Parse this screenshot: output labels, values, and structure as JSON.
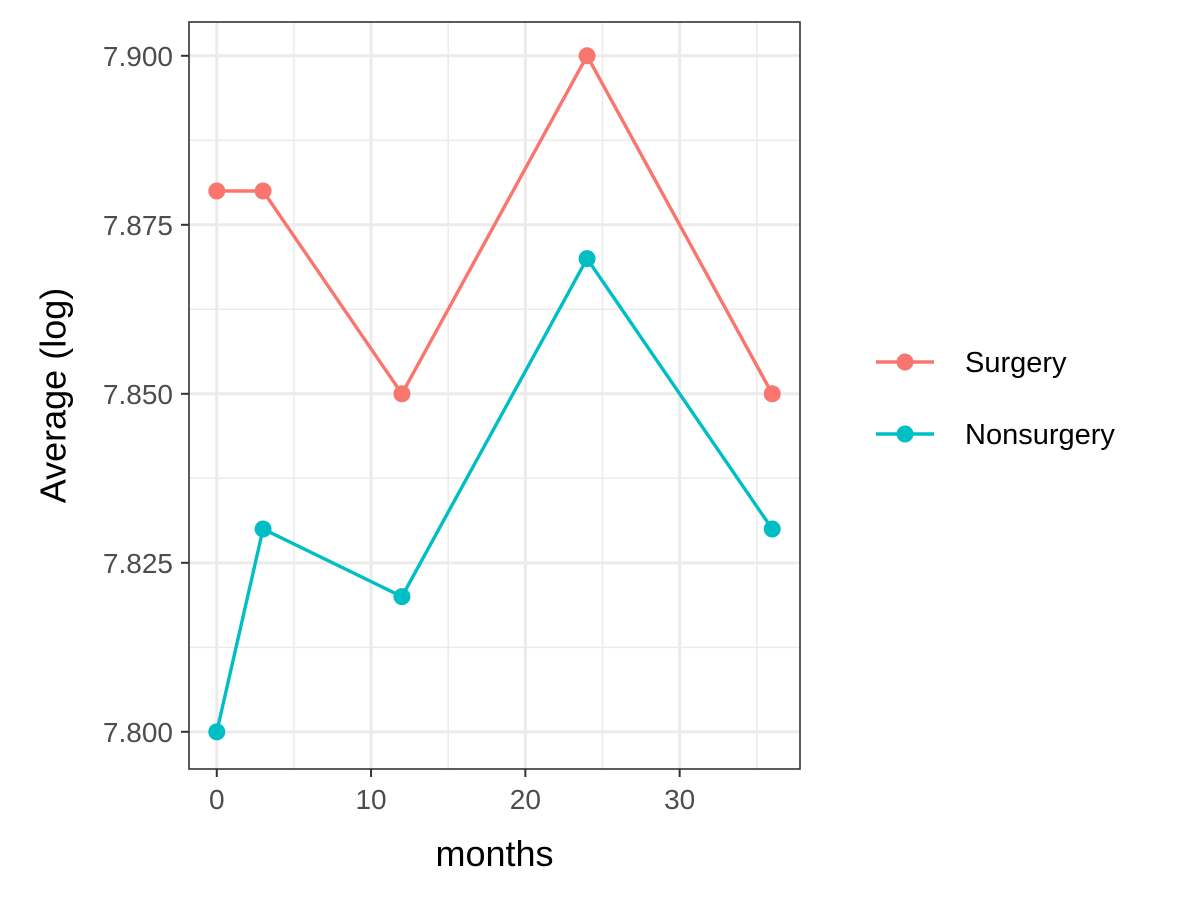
{
  "chart_data": {
    "type": "line",
    "title": "",
    "xlabel": "months",
    "ylabel": "Average (log)",
    "xlim": [
      -1.8,
      37.8
    ],
    "ylim": [
      7.7945,
      7.905
    ],
    "x_ticks": [
      0,
      10,
      20,
      30
    ],
    "x_minor_ticks": [
      5,
      15,
      25,
      35
    ],
    "y_ticks": [
      7.8,
      7.825,
      7.85,
      7.875,
      7.9
    ],
    "y_tick_labels": [
      "7.800",
      "7.825",
      "7.850",
      "7.875",
      "7.900"
    ],
    "y_minor_ticks": [
      7.8125,
      7.8375,
      7.8625,
      7.8875
    ],
    "grid": true,
    "legend_position": "right",
    "x": [
      0,
      3,
      12,
      24,
      36
    ],
    "series": [
      {
        "name": "Surgery",
        "color": "#F8766D",
        "values": [
          7.88,
          7.88,
          7.85,
          7.9,
          7.85
        ]
      },
      {
        "name": "Nonsurgery",
        "color": "#00BFC4",
        "values": [
          7.8,
          7.83,
          7.82,
          7.87,
          7.83
        ]
      }
    ]
  }
}
